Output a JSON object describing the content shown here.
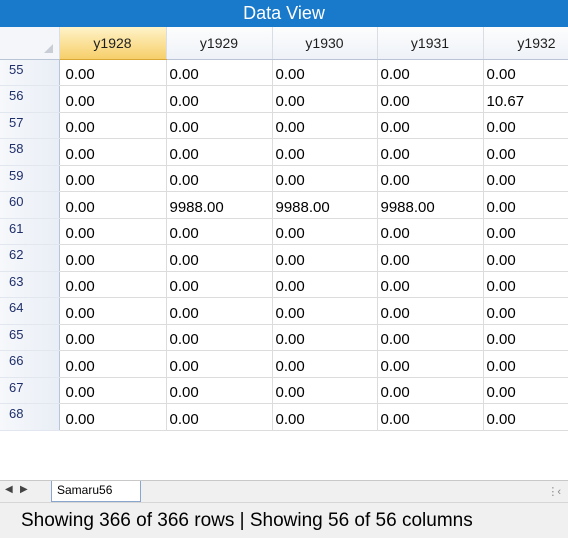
{
  "window": {
    "title": "Data View"
  },
  "columns": [
    "y1928",
    "y1929",
    "y1930",
    "y1931",
    "y1932"
  ],
  "rows": [
    {
      "id": "55",
      "cells": [
        "0.00",
        "0.00",
        "0.00",
        "0.00",
        "0.00"
      ]
    },
    {
      "id": "56",
      "cells": [
        "0.00",
        "0.00",
        "0.00",
        "0.00",
        "10.67"
      ]
    },
    {
      "id": "57",
      "cells": [
        "0.00",
        "0.00",
        "0.00",
        "0.00",
        "0.00"
      ]
    },
    {
      "id": "58",
      "cells": [
        "0.00",
        "0.00",
        "0.00",
        "0.00",
        "0.00"
      ]
    },
    {
      "id": "59",
      "cells": [
        "0.00",
        "0.00",
        "0.00",
        "0.00",
        "0.00"
      ]
    },
    {
      "id": "60",
      "cells": [
        "0.00",
        "9988.00",
        "9988.00",
        "9988.00",
        "0.00"
      ]
    },
    {
      "id": "61",
      "cells": [
        "0.00",
        "0.00",
        "0.00",
        "0.00",
        "0.00"
      ]
    },
    {
      "id": "62",
      "cells": [
        "0.00",
        "0.00",
        "0.00",
        "0.00",
        "0.00"
      ]
    },
    {
      "id": "63",
      "cells": [
        "0.00",
        "0.00",
        "0.00",
        "0.00",
        "0.00"
      ]
    },
    {
      "id": "64",
      "cells": [
        "0.00",
        "0.00",
        "0.00",
        "0.00",
        "0.00"
      ]
    },
    {
      "id": "65",
      "cells": [
        "0.00",
        "0.00",
        "0.00",
        "0.00",
        "0.00"
      ]
    },
    {
      "id": "66",
      "cells": [
        "0.00",
        "0.00",
        "0.00",
        "0.00",
        "0.00"
      ]
    },
    {
      "id": "67",
      "cells": [
        "0.00",
        "0.00",
        "0.00",
        "0.00",
        "0.00"
      ]
    },
    {
      "id": "68",
      "cells": [
        "0.00",
        "0.00",
        "0.00",
        "0.00",
        "0.00"
      ]
    }
  ],
  "sheet_tabs": [
    {
      "label": "Samaru56",
      "active": true
    }
  ],
  "nav_icons": {
    "prev": "triangle-left-icon",
    "next": "triangle-right-icon"
  },
  "status": {
    "text": "Showing 366 of 366 rows | Showing 56 of 56 columns"
  },
  "colors": {
    "title_bar": "#1979ca",
    "selected_header": "#f6cf6a",
    "row_header_text": "#1f2f6a"
  }
}
